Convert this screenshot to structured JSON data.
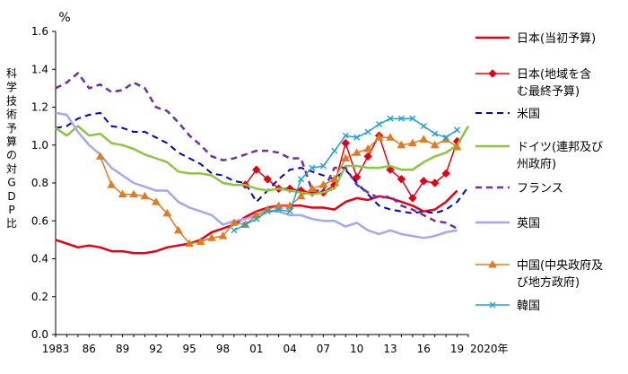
{
  "chart_data": {
    "type": "line",
    "ylabel_top": "%",
    "ylabel": "科学技術予算の対GDP比",
    "ylim": [
      0.0,
      1.6
    ],
    "yticks": [
      "0.0",
      "0.2",
      "0.4",
      "0.6",
      "0.8",
      "1.0",
      "1.2",
      "1.4",
      "1.6"
    ],
    "xlim": [
      1983,
      2020
    ],
    "xticks": [
      {
        "year": 1983,
        "label": "1983"
      },
      {
        "year": 1986,
        "label": "86"
      },
      {
        "year": 1989,
        "label": "89"
      },
      {
        "year": 1992,
        "label": "92"
      },
      {
        "year": 1995,
        "label": "95"
      },
      {
        "year": 1998,
        "label": "98"
      },
      {
        "year": 2001,
        "label": "01"
      },
      {
        "year": 2004,
        "label": "04"
      },
      {
        "year": 2007,
        "label": "07"
      },
      {
        "year": 2010,
        "label": "10"
      },
      {
        "year": 2013,
        "label": "13"
      },
      {
        "year": 2016,
        "label": "16"
      },
      {
        "year": 2019,
        "label": "19"
      }
    ],
    "xlabel_end": "2020年",
    "grid": false,
    "legend_placement": "right",
    "series": [
      {
        "name": "日本(当初予算)",
        "color": "#e60012",
        "dash": "solid",
        "marker": "none",
        "width": 2.5,
        "x": [
          1983,
          1984,
          1985,
          1986,
          1987,
          1988,
          1989,
          1990,
          1991,
          1992,
          1993,
          1994,
          1995,
          1996,
          1997,
          1998,
          1999,
          2000,
          2001,
          2002,
          2003,
          2004,
          2005,
          2006,
          2007,
          2008,
          2009,
          2010,
          2011,
          2012,
          2013,
          2014,
          2015,
          2016,
          2017,
          2018,
          2019
        ],
        "values": [
          0.5,
          0.48,
          0.46,
          0.47,
          0.46,
          0.44,
          0.44,
          0.43,
          0.43,
          0.44,
          0.46,
          0.47,
          0.48,
          0.5,
          0.54,
          0.56,
          0.58,
          0.62,
          0.65,
          0.67,
          0.68,
          0.68,
          0.68,
          0.67,
          0.67,
          0.66,
          0.7,
          0.72,
          0.71,
          0.73,
          0.72,
          0.7,
          0.68,
          0.65,
          0.66,
          0.7,
          0.76
        ]
      },
      {
        "name": "日本(地域を含む最終予算)",
        "color": "#e60012",
        "dash": "solid",
        "marker": "diamond",
        "width": 1.5,
        "x": [
          2000,
          2001,
          2002,
          2003,
          2004,
          2005,
          2006,
          2007,
          2008,
          2009,
          2010,
          2011,
          2012,
          2013,
          2014,
          2015,
          2016,
          2017,
          2018,
          2019
        ],
        "values": [
          0.79,
          0.87,
          0.82,
          0.77,
          0.77,
          0.76,
          0.75,
          0.75,
          0.79,
          1.01,
          0.83,
          0.94,
          1.05,
          0.87,
          0.82,
          0.72,
          0.81,
          0.8,
          0.85,
          1.02
        ]
      },
      {
        "name": "米国",
        "color": "#0000cc",
        "dash": "dashed",
        "marker": "none",
        "width": 2,
        "x": [
          1983,
          1984,
          1985,
          1986,
          1987,
          1988,
          1989,
          1990,
          1991,
          1992,
          1993,
          1994,
          1995,
          1996,
          1997,
          1998,
          1999,
          2000,
          2001,
          2002,
          2003,
          2004,
          2005,
          2006,
          2007,
          2008,
          2009,
          2010,
          2011,
          2012,
          2013,
          2014,
          2015,
          2016,
          2017,
          2018,
          2019,
          2020
        ],
        "values": [
          1.09,
          1.1,
          1.14,
          1.16,
          1.17,
          1.1,
          1.09,
          1.07,
          1.07,
          1.04,
          1.01,
          0.96,
          0.93,
          0.9,
          0.85,
          0.84,
          0.81,
          0.8,
          0.7,
          0.76,
          0.82,
          0.87,
          0.88,
          0.86,
          0.84,
          0.82,
          0.87,
          0.8,
          0.74,
          0.68,
          0.66,
          0.65,
          0.64,
          0.65,
          0.64,
          0.66,
          0.7,
          0.78
        ]
      },
      {
        "name": "ドイツ(連邦及び州政府)",
        "color": "#8cc63f",
        "dash": "solid",
        "marker": "none",
        "width": 2.5,
        "x": [
          1983,
          1984,
          1985,
          1986,
          1987,
          1988,
          1989,
          1990,
          1991,
          1992,
          1993,
          1994,
          1995,
          1996,
          1997,
          1998,
          1999,
          2000,
          2001,
          2002,
          2003,
          2004,
          2005,
          2006,
          2007,
          2008,
          2009,
          2010,
          2011,
          2012,
          2013,
          2014,
          2015,
          2016,
          2017,
          2018,
          2019,
          2020
        ],
        "values": [
          1.09,
          1.05,
          1.1,
          1.05,
          1.06,
          1.01,
          1.0,
          0.98,
          0.95,
          0.93,
          0.91,
          0.86,
          0.85,
          0.85,
          0.84,
          0.8,
          0.79,
          0.79,
          0.77,
          0.76,
          0.77,
          0.76,
          0.75,
          0.74,
          0.75,
          0.77,
          0.89,
          0.89,
          0.88,
          0.88,
          0.89,
          0.87,
          0.87,
          0.91,
          0.94,
          0.96,
          1.0,
          1.1
        ]
      },
      {
        "name": "フランス",
        "color": "#7030a0",
        "dash": "dashed",
        "marker": "none",
        "width": 2.5,
        "x": [
          1983,
          1984,
          1985,
          1986,
          1987,
          1988,
          1989,
          1990,
          1991,
          1992,
          1993,
          1994,
          1995,
          1996,
          1997,
          1998,
          1999,
          2000,
          2001,
          2002,
          2003,
          2004,
          2005,
          2006,
          2007,
          2008,
          2009,
          2010,
          2011,
          2012,
          2013,
          2014,
          2015,
          2016,
          2017,
          2018,
          2019
        ],
        "values": [
          1.3,
          1.33,
          1.38,
          1.3,
          1.32,
          1.28,
          1.29,
          1.33,
          1.3,
          1.2,
          1.18,
          1.12,
          1.05,
          1.0,
          0.94,
          0.92,
          0.93,
          0.95,
          0.97,
          0.97,
          0.96,
          0.93,
          0.93,
          0.76,
          0.76,
          0.88,
          0.88,
          0.79,
          0.75,
          0.72,
          0.73,
          0.68,
          0.66,
          0.63,
          0.6,
          0.59,
          0.56
        ]
      },
      {
        "name": "英国",
        "color": "#a6a6f2",
        "dash": "solid",
        "marker": "none",
        "width": 2.5,
        "x": [
          1983,
          1984,
          1985,
          1986,
          1987,
          1988,
          1989,
          1990,
          1991,
          1992,
          1993,
          1994,
          1995,
          1996,
          1997,
          1998,
          1999,
          2000,
          2001,
          2002,
          2003,
          2004,
          2005,
          2006,
          2007,
          2008,
          2009,
          2010,
          2011,
          2012,
          2013,
          2014,
          2015,
          2016,
          2017,
          2018,
          2019
        ],
        "values": [
          1.17,
          1.16,
          1.07,
          1.0,
          0.95,
          0.88,
          0.84,
          0.8,
          0.78,
          0.76,
          0.76,
          0.7,
          0.67,
          0.65,
          0.63,
          0.58,
          0.6,
          0.61,
          0.63,
          0.65,
          0.65,
          0.63,
          0.63,
          0.61,
          0.6,
          0.6,
          0.57,
          0.59,
          0.55,
          0.53,
          0.55,
          0.53,
          0.52,
          0.51,
          0.52,
          0.54,
          0.55
        ]
      },
      {
        "name": "中国(中央政府及び地方政府)",
        "color": "#e07b20",
        "dash": "solid",
        "marker": "triangle",
        "width": 1.5,
        "x": [
          1987,
          1988,
          1989,
          1990,
          1991,
          1992,
          1993,
          1994,
          1995,
          1996,
          1997,
          1998,
          1999,
          2000,
          2001,
          2002,
          2003,
          2004,
          2005,
          2006,
          2007,
          2008,
          2009,
          2010,
          2011,
          2012,
          2013,
          2014,
          2015,
          2016,
          2017,
          2018,
          2019
        ],
        "values": [
          0.94,
          0.79,
          0.74,
          0.74,
          0.73,
          0.7,
          0.64,
          0.55,
          0.48,
          0.49,
          0.51,
          0.52,
          0.59,
          0.58,
          0.63,
          0.66,
          0.68,
          0.68,
          0.73,
          0.77,
          0.79,
          0.82,
          0.93,
          0.96,
          0.98,
          1.04,
          1.04,
          1.0,
          1.01,
          1.03,
          1.0,
          1.03,
          0.99
        ]
      },
      {
        "name": "韓国",
        "color": "#1ea0d8",
        "dash": "solid",
        "marker": "x",
        "width": 1.5,
        "x": [
          1999,
          2000,
          2001,
          2002,
          2003,
          2004,
          2005,
          2006,
          2007,
          2008,
          2009,
          2010,
          2011,
          2012,
          2013,
          2014,
          2015,
          2016,
          2017,
          2018,
          2019
        ],
        "values": [
          0.55,
          0.58,
          0.61,
          0.65,
          0.66,
          0.65,
          0.82,
          0.88,
          0.89,
          0.97,
          1.05,
          1.04,
          1.07,
          1.11,
          1.14,
          1.14,
          1.14,
          1.1,
          1.06,
          1.04,
          1.08
        ]
      }
    ]
  }
}
